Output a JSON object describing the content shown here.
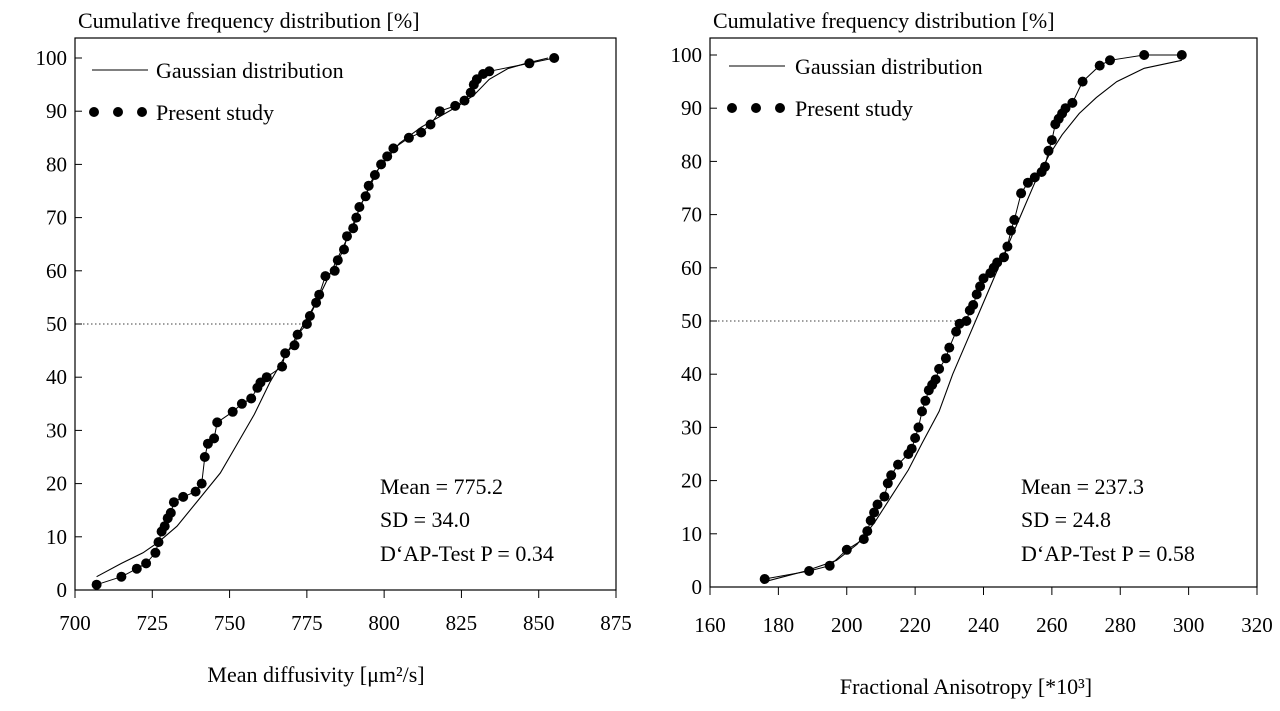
{
  "chart_data": [
    {
      "type": "line",
      "title": "",
      "ylabel": "Cumulative frequency distribution [%]",
      "xlabel": "Mean diffusivity [μm²/s]",
      "xlim": [
        700,
        875
      ],
      "ylim": [
        0,
        100
      ],
      "xticks": [
        700,
        725,
        750,
        775,
        800,
        825,
        850,
        875
      ],
      "yticks": [
        0,
        10,
        20,
        30,
        40,
        50,
        60,
        70,
        80,
        90,
        100
      ],
      "legend": {
        "placement": "top-left",
        "entries": [
          "Gaussian distribution",
          "Present study"
        ]
      },
      "reference_line": {
        "y": 50,
        "x_to": 775.2,
        "style": "dotted"
      },
      "annotations": [
        "Mean = 775.2",
        "SD = 34.0",
        "D‘AP-Test P = 0.34"
      ],
      "series": [
        {
          "name": "Gaussian distribution",
          "kind": "line",
          "x": [
            707,
            715,
            722,
            727,
            733,
            740,
            747,
            752,
            758,
            763,
            768,
            773,
            778,
            783,
            788,
            793,
            798,
            805,
            812,
            818,
            824,
            829,
            834,
            840,
            846,
            853
          ],
          "y": [
            2.5,
            5,
            7,
            9,
            12,
            17,
            22,
            27,
            33,
            39,
            44,
            49,
            54,
            60,
            66,
            73,
            79,
            84,
            87,
            89,
            91,
            93,
            96,
            98,
            99,
            100
          ]
        },
        {
          "name": "Present study",
          "kind": "scatter",
          "x": [
            707,
            715,
            720,
            723,
            726,
            727,
            728,
            729,
            730,
            731,
            732,
            735,
            739,
            741,
            742,
            743,
            745,
            746,
            751,
            754,
            757,
            759,
            760,
            762,
            767,
            768,
            771,
            772,
            775,
            776,
            778,
            779,
            781,
            784,
            785,
            787,
            788,
            790,
            791,
            792,
            794,
            795,
            797,
            799,
            801,
            803,
            808,
            812,
            815,
            818,
            823,
            826,
            828,
            829,
            830,
            832,
            834,
            847,
            855
          ],
          "y": [
            1,
            2.5,
            4,
            5,
            7,
            9,
            11,
            12,
            13.5,
            14.5,
            16.5,
            17.5,
            18.5,
            20,
            25,
            27.5,
            28.5,
            31.5,
            33.5,
            35,
            36,
            38,
            39,
            40,
            42,
            44.5,
            46,
            48,
            50,
            51.5,
            54,
            55.5,
            59,
            60,
            62,
            64,
            66.5,
            68,
            70,
            72,
            74,
            76,
            78,
            80,
            81.5,
            83,
            85,
            86,
            87.5,
            90,
            91,
            92,
            93.5,
            95,
            96,
            97,
            97.5,
            99,
            100
          ]
        }
      ]
    },
    {
      "type": "line",
      "title": "",
      "ylabel": "Cumulative frequency distribution [%]",
      "xlabel": "Fractional Anisotropy [*10³]",
      "xlim": [
        160,
        320
      ],
      "ylim": [
        0,
        100
      ],
      "xticks": [
        160,
        180,
        200,
        220,
        240,
        260,
        280,
        300,
        320
      ],
      "yticks": [
        0,
        10,
        20,
        30,
        40,
        50,
        60,
        70,
        80,
        90,
        100
      ],
      "legend": {
        "placement": "top-left",
        "entries": [
          "Gaussian distribution",
          "Present study"
        ]
      },
      "reference_line": {
        "y": 50,
        "x_to": 237.3,
        "style": "dotted"
      },
      "annotations": [
        "Mean = 237.3",
        "SD = 24.8",
        "D‘AP-Test P = 0.58"
      ],
      "series": [
        {
          "name": "Gaussian distribution",
          "kind": "line",
          "x": [
            176,
            188,
            197,
            203,
            208,
            213,
            218,
            222,
            227,
            231,
            235,
            239,
            243,
            247,
            251,
            255,
            259,
            263,
            268,
            273,
            279,
            287,
            298
          ],
          "y": [
            1,
            3,
            5,
            8,
            12,
            17,
            22,
            27,
            33,
            40,
            46,
            52,
            58,
            64,
            70,
            76,
            81,
            85,
            89,
            92,
            95,
            97.5,
            99
          ]
        },
        {
          "name": "Present study",
          "kind": "scatter",
          "x": [
            176,
            189,
            195,
            200,
            205,
            206,
            207,
            208,
            209,
            211,
            212,
            213,
            215,
            218,
            219,
            220,
            221,
            222,
            223,
            224,
            225,
            226,
            227,
            229,
            230,
            232,
            233,
            235,
            236,
            237,
            238,
            239,
            240,
            242,
            243,
            244,
            246,
            247,
            248,
            249,
            251,
            253,
            255,
            257,
            258,
            259,
            260,
            261,
            262,
            263,
            264,
            266,
            269,
            274,
            277,
            287,
            298
          ],
          "y": [
            1.5,
            3,
            4,
            7,
            9,
            10.5,
            12.5,
            14,
            15.5,
            17,
            19.5,
            21,
            23,
            25,
            26,
            28,
            30,
            33,
            35,
            37,
            38,
            39,
            41,
            43,
            45,
            48,
            49.5,
            50,
            52,
            53,
            55,
            56.5,
            58,
            59,
            60,
            61,
            62,
            64,
            67,
            69,
            74,
            76,
            77,
            78,
            79,
            82,
            84,
            87,
            88,
            89,
            90,
            91,
            95,
            98,
            99,
            100,
            100
          ]
        }
      ]
    }
  ]
}
